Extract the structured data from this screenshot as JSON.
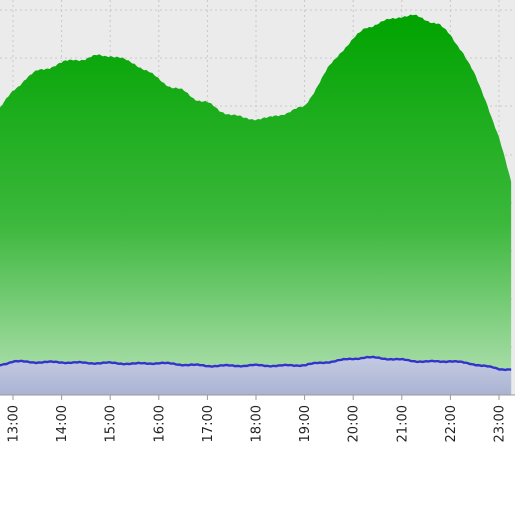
{
  "chart_data": {
    "type": "area",
    "title": "",
    "xlabel": "",
    "ylabel": "",
    "grid": true,
    "x_ticks": [
      "13:00",
      "14:00",
      "15:00",
      "16:00",
      "17:00",
      "18:00",
      "19:00",
      "20:00",
      "21:00",
      "22:00",
      "23:00"
    ],
    "x_range": [
      12.7,
      23.25
    ],
    "y_range": [
      0,
      100
    ],
    "series": [
      {
        "kind": "area",
        "color": "#00a800",
        "x": [
          12.7,
          13.0,
          13.25,
          13.5,
          13.75,
          14.0,
          14.25,
          14.5,
          14.75,
          15.0,
          15.25,
          15.5,
          15.75,
          16.0,
          16.25,
          16.5,
          16.75,
          17.0,
          17.25,
          17.5,
          17.75,
          18.0,
          18.25,
          18.5,
          18.75,
          19.0,
          19.25,
          19.5,
          19.75,
          20.0,
          20.25,
          20.5,
          20.75,
          21.0,
          21.25,
          21.5,
          21.75,
          22.0,
          22.25,
          22.5,
          22.75,
          23.0,
          23.25
        ],
        "values": [
          72,
          77,
          80,
          82,
          83,
          84,
          85,
          85,
          86,
          86,
          85,
          84,
          82,
          80,
          78,
          77,
          75,
          74,
          72,
          71,
          70,
          70,
          70,
          71,
          72,
          73,
          78,
          83,
          87,
          90,
          93,
          94,
          95,
          96,
          96,
          95,
          94,
          91,
          87,
          81,
          74,
          65,
          54
        ]
      },
      {
        "kind": "line",
        "color": "#3333cc",
        "x": [
          12.7,
          13.0,
          13.5,
          14.0,
          14.5,
          15.0,
          15.5,
          16.0,
          16.5,
          17.0,
          17.5,
          18.0,
          18.5,
          19.0,
          19.5,
          20.0,
          20.25,
          20.5,
          21.0,
          21.5,
          22.0,
          22.5,
          23.0,
          23.25
        ],
        "values": [
          7.5,
          8.5,
          8.3,
          8.3,
          8.1,
          8.1,
          7.9,
          8.1,
          7.7,
          7.4,
          7.4,
          7.5,
          7.4,
          7.6,
          8.4,
          9.2,
          9.5,
          9.4,
          8.9,
          8.4,
          8.6,
          7.8,
          6.6,
          6.5
        ]
      }
    ]
  }
}
